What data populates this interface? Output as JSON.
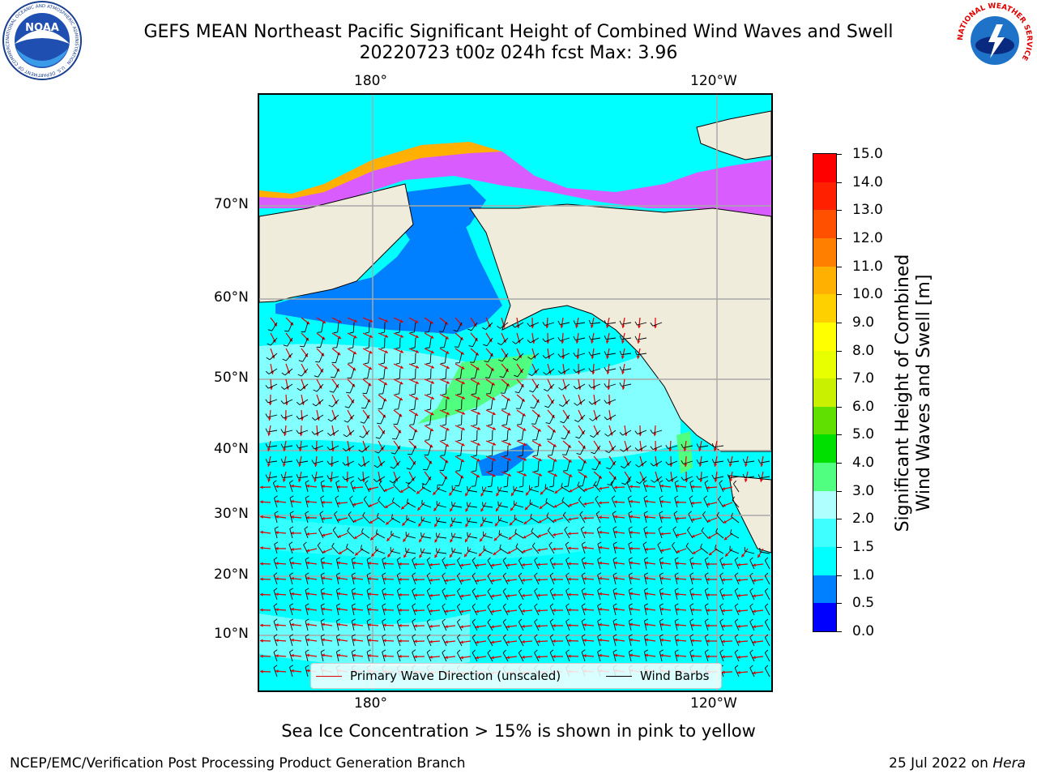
{
  "title_line1": "GEFS MEAN Northeast Pacific Significant Height of Combined Wind Waves and Swell",
  "title_line2": "20220723 t00z 024h fcst   Max: 3.96",
  "lon_labels_top": [
    "180°",
    "120°W"
  ],
  "lon_labels_bottom": [
    "180°",
    "120°W"
  ],
  "lat_labels": [
    "70°N",
    "60°N",
    "50°N",
    "40°N",
    "30°N",
    "20°N",
    "10°N"
  ],
  "legend": {
    "wave_label": "Primary Wave Direction (unscaled)",
    "wind_label": "Wind Barbs",
    "wave_color": "#e00000",
    "wind_color": "#000000"
  },
  "colorbar": {
    "label_line1": "Significant Height of Combined",
    "label_line2": "Wind Waves and Swell [m]",
    "ticks": [
      "15.0",
      "14.0",
      "13.0",
      "12.0",
      "11.0",
      "10.0",
      "9.0",
      "8.0",
      "7.0",
      "6.0",
      "5.0",
      "4.0",
      "3.0",
      "2.0",
      "1.5",
      "1.0",
      "0.5",
      "0.0"
    ],
    "colors_bottom_to_top": [
      "#0000ff",
      "#0080ff",
      "#00ffff",
      "#40ffff",
      "#b0ffff",
      "#50ff80",
      "#00e000",
      "#60e000",
      "#c8f000",
      "#e8ff00",
      "#ffff00",
      "#ffd000",
      "#ffb000",
      "#ff8000",
      "#ff5000",
      "#ff2000",
      "#ff0000"
    ]
  },
  "map_colors": {
    "land": "#efecdc",
    "ocean": "#00ffff"
  },
  "sea_ice_note": "Sea Ice Concentration > 15% is shown in pink to yellow",
  "footer_left": "NCEP/EMC/Verification Post Processing Product Generation Branch",
  "footer_date": "25 Jul 2022 on",
  "footer_machine": "Hera",
  "logos": {
    "noaa_text": "NOAA",
    "noaa_ring": "NATIONAL OCEANIC AND ATMOSPHERIC ADMINISTRATION · U.S. DEPARTMENT OF COMMERCE",
    "nws_ring": "NATIONAL WEATHER SERVICE"
  }
}
